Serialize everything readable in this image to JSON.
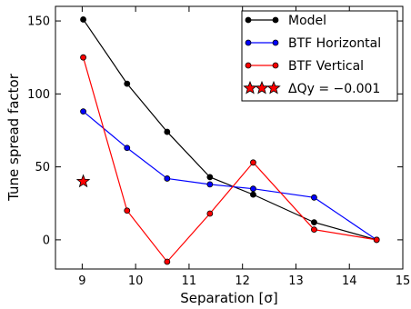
{
  "chart_data": {
    "type": "line",
    "xlabel": "Separation [σ]",
    "ylabel": "Tune spread factor",
    "xlim": [
      8.5,
      15
    ],
    "ylim": [
      -20,
      160
    ],
    "xticks": [
      9,
      10,
      11,
      12,
      13,
      14,
      15
    ],
    "yticks": [
      0,
      50,
      100,
      150
    ],
    "xtick_labels": [
      "9",
      "10",
      "11",
      "12",
      "13",
      "14",
      "15"
    ],
    "ytick_labels": [
      "0",
      "50",
      "100",
      "150"
    ],
    "legend_position": "top-right",
    "grid": false,
    "series": [
      {
        "name": "Model",
        "color": "#000000",
        "marker": "circle",
        "x": [
          9.02,
          9.84,
          10.59,
          11.39,
          12.2,
          13.34,
          14.51
        ],
        "y": [
          151,
          107,
          74,
          43,
          31,
          12,
          0
        ]
      },
      {
        "name": "BTF Horizontal",
        "color": "#0000ff",
        "marker": "circle",
        "x": [
          9.02,
          9.84,
          10.59,
          11.39,
          12.2,
          13.34,
          14.51
        ],
        "y": [
          88,
          63,
          42,
          38,
          35,
          29,
          0
        ]
      },
      {
        "name": "BTF Vertical",
        "color": "#ff0000",
        "marker": "circle",
        "x": [
          9.02,
          9.84,
          10.59,
          11.39,
          12.2,
          13.34,
          14.51
        ],
        "y": [
          125,
          20,
          -15,
          18,
          53,
          7,
          0
        ]
      },
      {
        "name": "ΔQy = −0.001",
        "color": "#ff0000",
        "marker": "star",
        "x": [
          9.02
        ],
        "y": [
          40
        ]
      }
    ]
  }
}
